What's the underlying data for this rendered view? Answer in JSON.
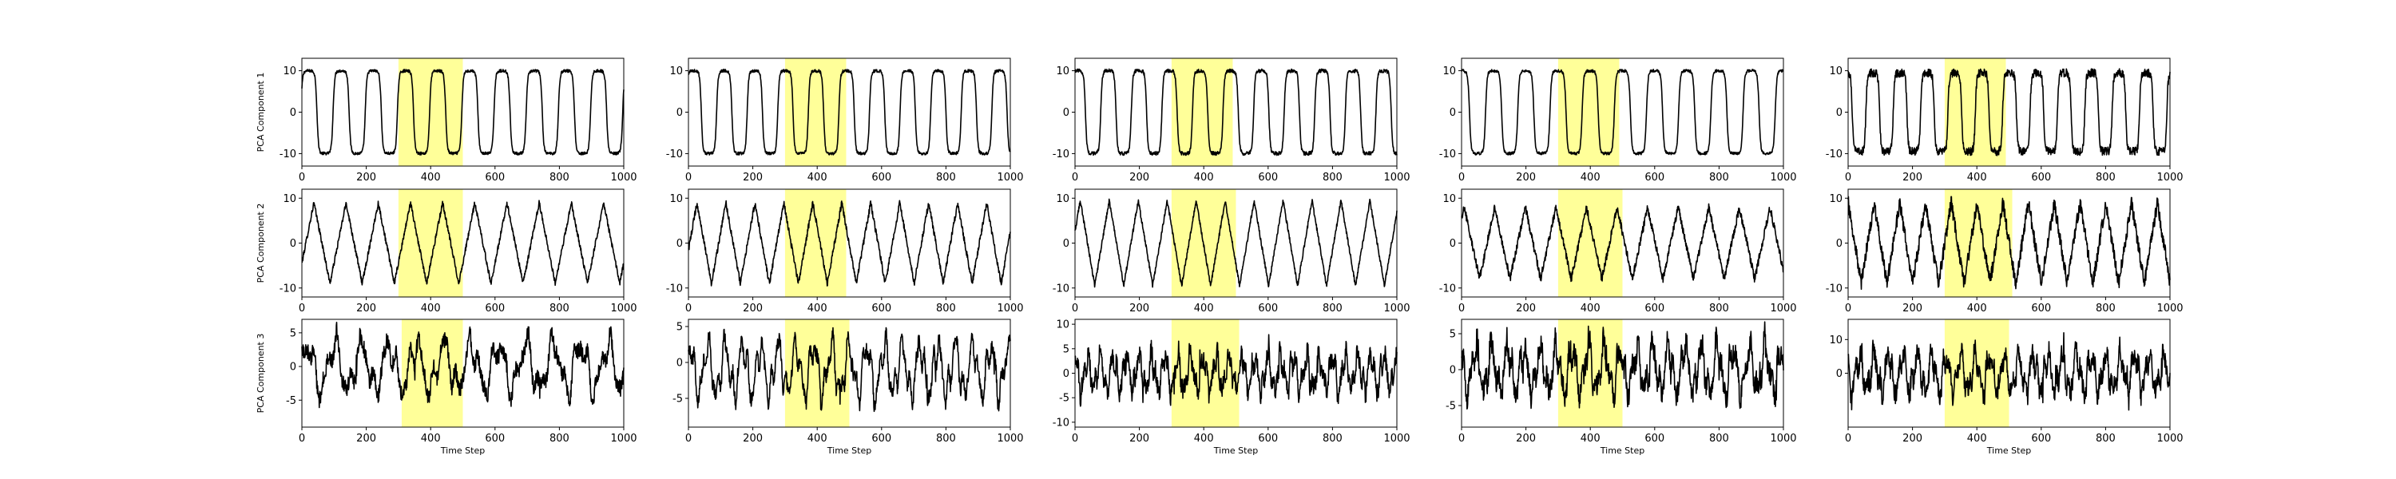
{
  "colors": {
    "line": "#000000",
    "highlight": "#ffff99",
    "frame": "#000000",
    "background": "#ffffff"
  },
  "chart_data": {
    "type": "line",
    "layout": "3x5 grid of small-multiple line plots",
    "xlabel": "Time Step",
    "row_labels": [
      "PCA Component 1",
      "PCA Component 2",
      "PCA Component 3"
    ],
    "xlim": [
      0,
      1000
    ],
    "xticks": [
      0,
      200,
      400,
      600,
      800,
      1000
    ],
    "grid": false,
    "legend": "none",
    "rows": [
      {
        "ylabel": "PCA Component 1",
        "ylim": [
          -13,
          13
        ],
        "yticks": [
          -10,
          0,
          10
        ],
        "panels": [
          {
            "highlight": [
              300,
              500
            ],
            "period": 100,
            "amplitude": 10,
            "offset": 0,
            "noise": 0.35,
            "shape": "square",
            "phase": 0.2
          },
          {
            "highlight": [
              300,
              490
            ],
            "period": 95,
            "amplitude": 10,
            "offset": 0,
            "noise": 0.35,
            "shape": "square",
            "phase": 0.5
          },
          {
            "highlight": [
              300,
              490
            ],
            "period": 95,
            "amplitude": 10,
            "offset": 0,
            "noise": 0.45,
            "shape": "square",
            "phase": 1.0
          },
          {
            "highlight": [
              300,
              490
            ],
            "period": 100,
            "amplitude": 10,
            "offset": 0,
            "noise": 0.35,
            "shape": "square",
            "phase": 1.6
          },
          {
            "highlight": [
              300,
              490
            ],
            "period": 85,
            "amplitude": 9.5,
            "offset": 0,
            "noise": 1.0,
            "shape": "square",
            "phase": 2.2
          }
        ]
      },
      {
        "ylabel": "PCA Component 2",
        "ylim": [
          -12,
          12
        ],
        "yticks": [
          -10,
          0,
          10
        ],
        "panels": [
          {
            "highlight": [
              300,
              500
            ],
            "period": 100,
            "amplitude": 9,
            "offset": 0,
            "noise": 0.6,
            "shape": "triangle",
            "phase": 0.8
          },
          {
            "highlight": [
              300,
              490
            ],
            "period": 90,
            "amplitude": 9,
            "offset": 0,
            "noise": 0.7,
            "shape": "triangle",
            "phase": 1.3
          },
          {
            "highlight": [
              300,
              500
            ],
            "period": 90,
            "amplitude": 9.5,
            "offset": 0,
            "noise": 0.5,
            "shape": "triangle",
            "phase": 2.0
          },
          {
            "highlight": [
              300,
              500
            ],
            "period": 95,
            "amplitude": 8,
            "offset": 0,
            "noise": 0.9,
            "shape": "triangle",
            "phase": 2.6
          },
          {
            "highlight": [
              300,
              510
            ],
            "period": 80,
            "amplitude": 9,
            "offset": 0,
            "noise": 1.6,
            "shape": "triangle",
            "phase": 3.1
          }
        ]
      },
      {
        "ylabel": "PCA Component 3",
        "ylim": [
          -9,
          7
        ],
        "yticks": [
          -5,
          0,
          5
        ],
        "panels": [
          {
            "highlight": [
              310,
              500
            ],
            "period": 85,
            "amplitude": 4.5,
            "offset": 0,
            "noise": 1.2,
            "shape": "irregular",
            "phase": 0.4,
            "ylim": [
              -9,
              7
            ],
            "yticks": [
              -5,
              0,
              5
            ]
          },
          {
            "highlight": [
              300,
              500
            ],
            "period": 55,
            "amplitude": 4.5,
            "offset": -1,
            "noise": 1.0,
            "shape": "irregular",
            "phase": 1.1,
            "ylim": [
              -9,
              6
            ],
            "yticks": [
              -5,
              0,
              5
            ]
          },
          {
            "highlight": [
              300,
              510
            ],
            "period": 40,
            "amplitude": 4.5,
            "offset": 0,
            "noise": 1.8,
            "shape": "irregular",
            "phase": 1.7,
            "ylim": [
              -11,
              11
            ],
            "yticks": [
              -10,
              -5,
              0,
              5,
              10
            ]
          },
          {
            "highlight": [
              300,
              500
            ],
            "period": 50,
            "amplitude": 4,
            "offset": 0,
            "noise": 1.5,
            "shape": "irregular",
            "phase": 2.3,
            "ylim": [
              -8,
              7
            ],
            "yticks": [
              -5,
              0,
              5
            ]
          },
          {
            "highlight": [
              300,
              500
            ],
            "period": 45,
            "amplitude": 7,
            "offset": 0,
            "noise": 3.0,
            "shape": "irregular",
            "phase": 2.9,
            "ylim": [
              -16,
              16
            ],
            "yticks": [
              0,
              10
            ]
          }
        ]
      }
    ]
  }
}
